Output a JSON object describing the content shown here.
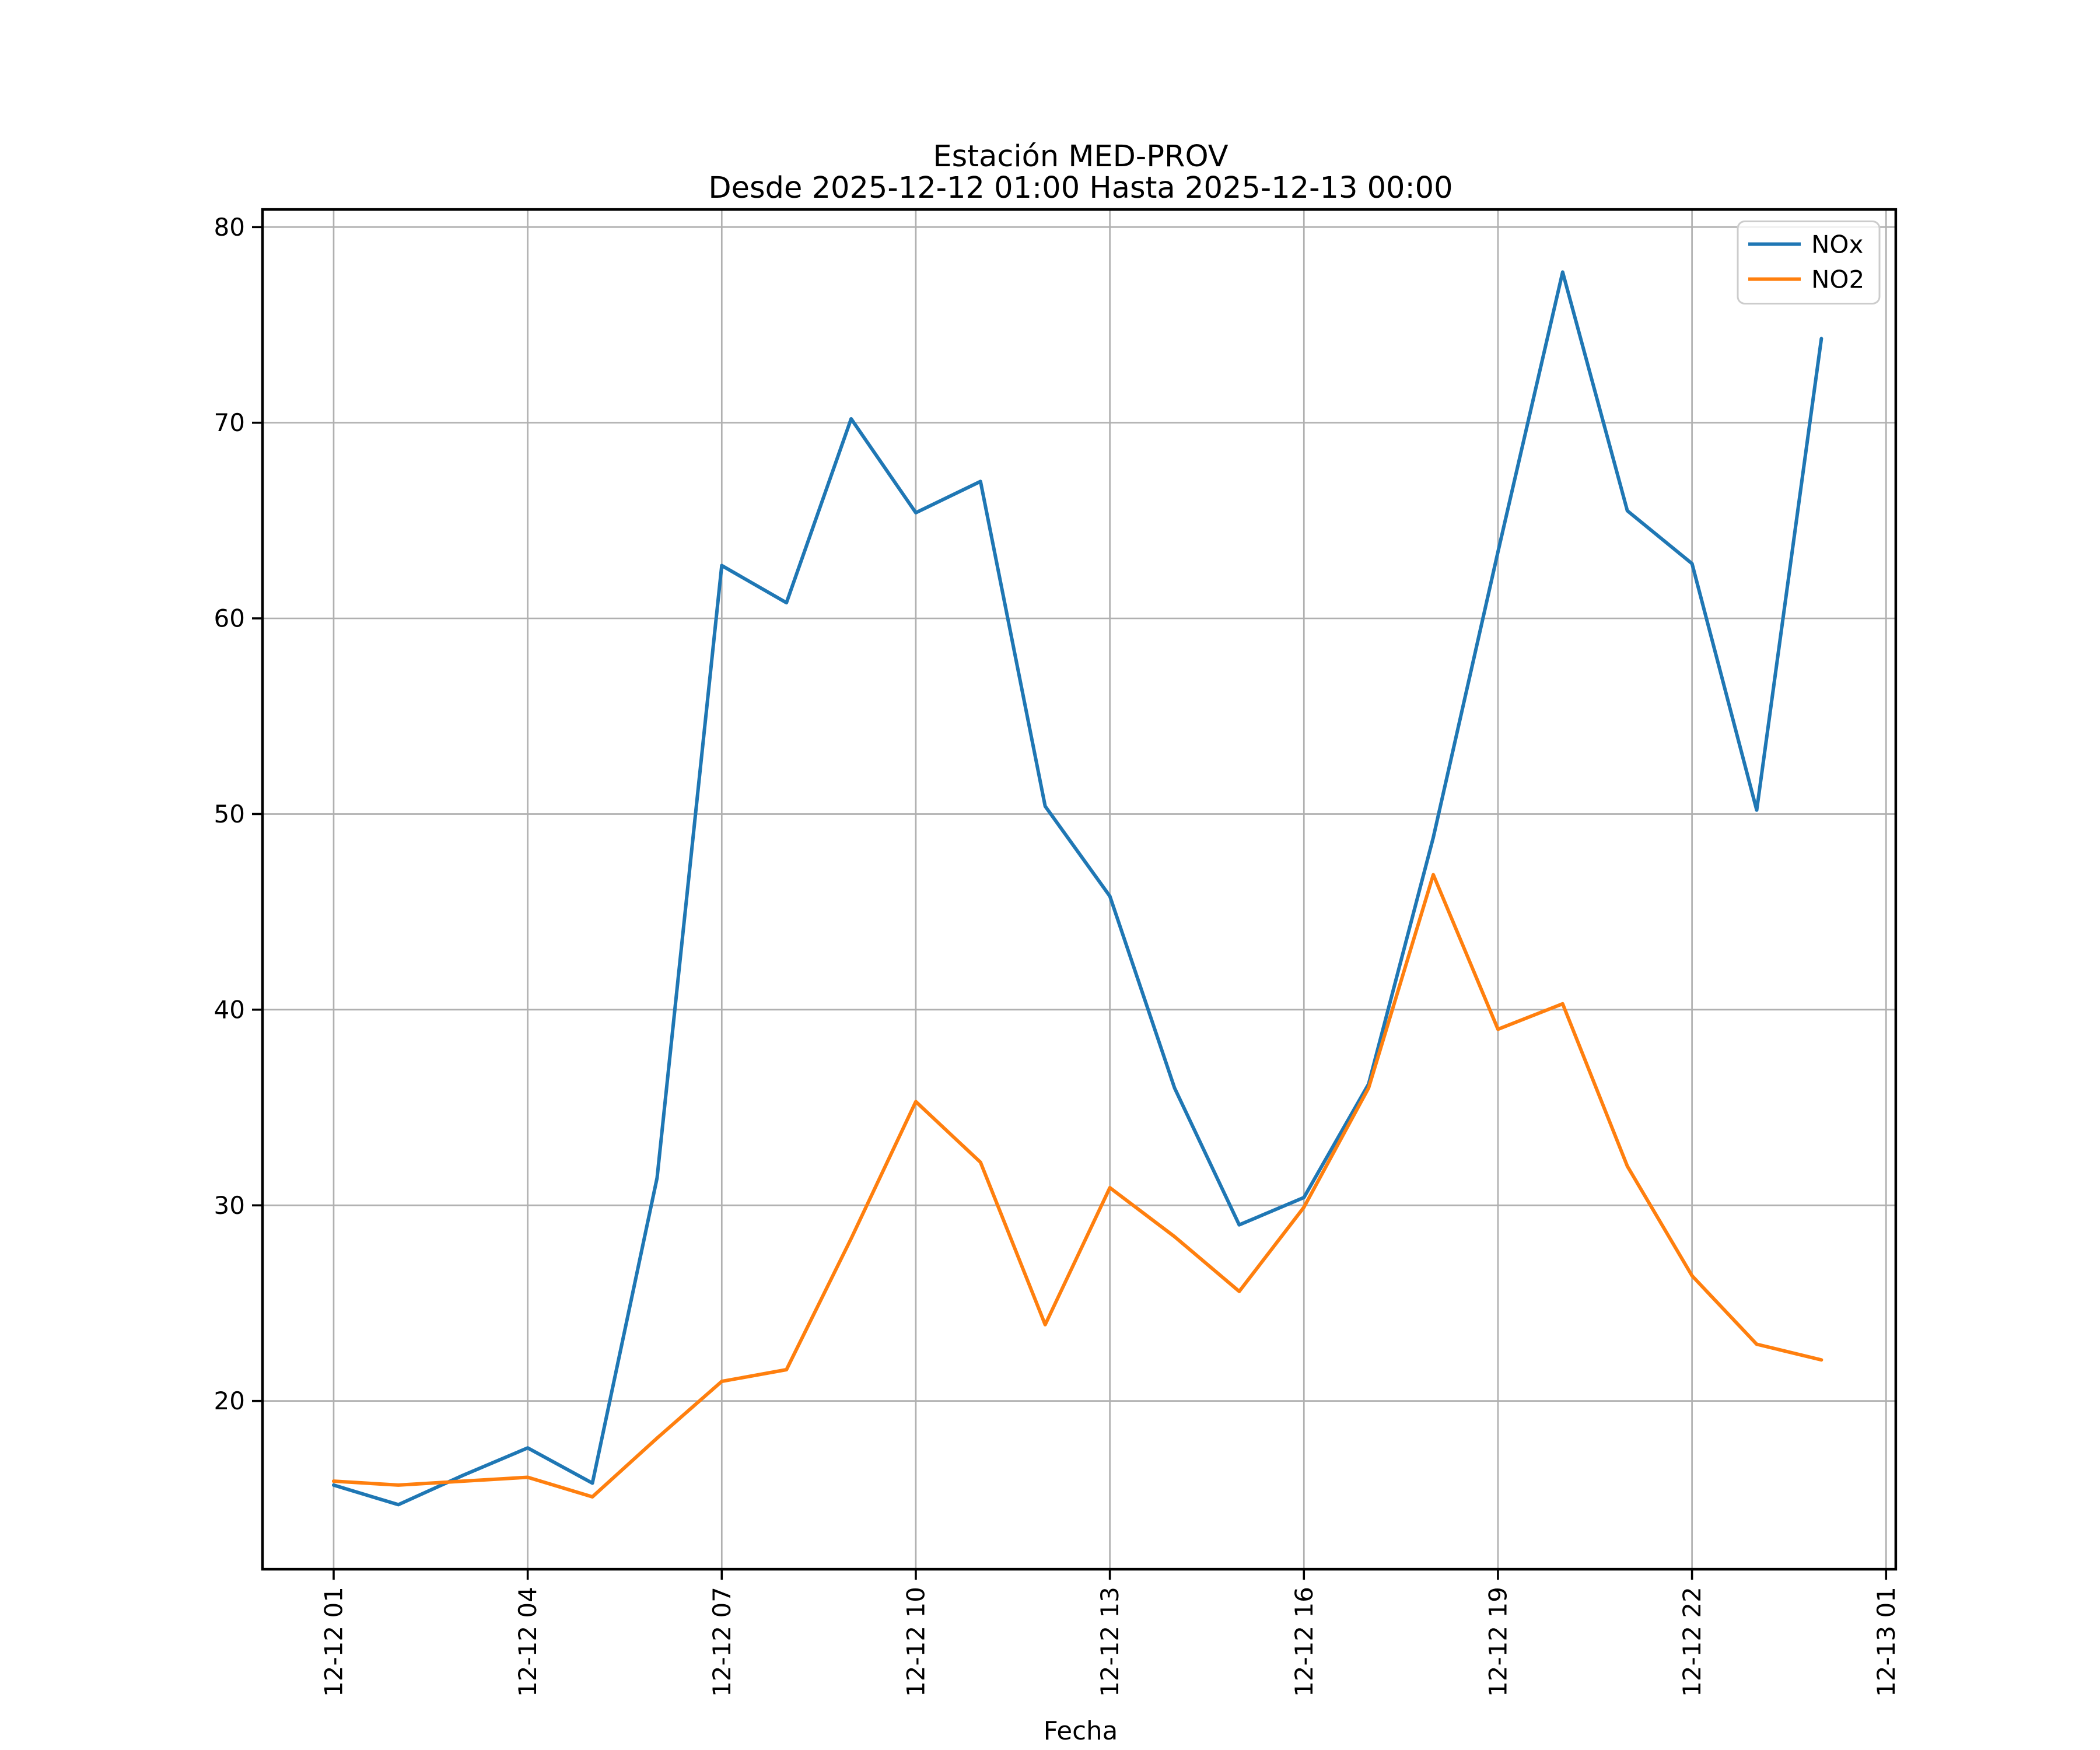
{
  "chart_data": {
    "type": "line",
    "title": "Estación MED-PROV",
    "subtitle": "Desde 2025-12-12 01:00 Hasta 2025-12-13 00:00",
    "xlabel": "Fecha",
    "ylabel": "",
    "x_hours": [
      1,
      2,
      3,
      4,
      5,
      6,
      7,
      8,
      9,
      10,
      11,
      12,
      13,
      14,
      15,
      16,
      17,
      18,
      19,
      20,
      21,
      22,
      23,
      24
    ],
    "series": [
      {
        "name": "NOx",
        "color": "#1f77b4",
        "values": [
          15.7,
          14.7,
          16.2,
          17.6,
          15.8,
          31.4,
          62.7,
          60.8,
          70.2,
          65.4,
          67.0,
          50.4,
          45.8,
          36.0,
          29.0,
          30.4,
          36.2,
          48.8,
          63.4,
          77.7,
          65.5,
          62.8,
          50.2,
          74.3
        ]
      },
      {
        "name": "NO2",
        "color": "#ff7f0e",
        "values": [
          15.9,
          15.7,
          15.9,
          16.1,
          15.1,
          18.1,
          21.0,
          21.6,
          28.3,
          35.3,
          32.2,
          23.9,
          30.9,
          28.4,
          25.6,
          29.9,
          36.0,
          46.9,
          39.0,
          40.3,
          32.0,
          26.4,
          22.9,
          22.1
        ]
      }
    ],
    "x_ticks": [
      {
        "pos": 1,
        "label": "12-12 01"
      },
      {
        "pos": 4,
        "label": "12-12 04"
      },
      {
        "pos": 7,
        "label": "12-12 07"
      },
      {
        "pos": 10,
        "label": "12-12 10"
      },
      {
        "pos": 13,
        "label": "12-12 13"
      },
      {
        "pos": 16,
        "label": "12-12 16"
      },
      {
        "pos": 19,
        "label": "12-12 19"
      },
      {
        "pos": 22,
        "label": "12-12 22"
      },
      {
        "pos": 25,
        "label": "12-13 01"
      }
    ],
    "y_ticks": [
      20,
      30,
      40,
      50,
      60,
      70,
      80
    ],
    "xlim": [
      -0.1,
      25.15
    ],
    "ylim": [
      11.4,
      80.9
    ],
    "grid": true,
    "legend": {
      "position": "upper right"
    },
    "colors": {
      "grid": "#b0b0b0",
      "axis": "#000000",
      "background": "#ffffff"
    }
  }
}
